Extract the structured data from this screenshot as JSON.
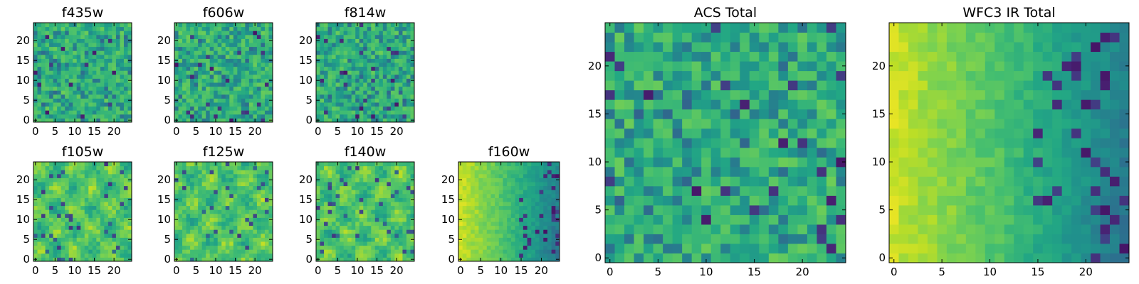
{
  "chart_data": [
    {
      "type": "heatmap",
      "title": "f435w",
      "image_size": [
        25,
        25
      ],
      "xlim": [
        0,
        24
      ],
      "ylim": [
        0,
        24
      ],
      "xticks": [
        "0",
        "5",
        "10",
        "15",
        "20"
      ],
      "yticks": [
        "0",
        "5",
        "10",
        "15",
        "20"
      ],
      "colormap": "viridis",
      "colorbar": false,
      "texture": "noisy",
      "values": []
    },
    {
      "type": "heatmap",
      "title": "f606w",
      "image_size": [
        25,
        25
      ],
      "xlim": [
        0,
        24
      ],
      "ylim": [
        0,
        24
      ],
      "xticks": [
        "0",
        "5",
        "10",
        "15",
        "20"
      ],
      "yticks": [
        "0",
        "5",
        "10",
        "15",
        "20"
      ],
      "colormap": "viridis",
      "colorbar": false,
      "texture": "noisy",
      "values": []
    },
    {
      "type": "heatmap",
      "title": "f814w",
      "image_size": [
        25,
        25
      ],
      "xlim": [
        0,
        24
      ],
      "ylim": [
        0,
        24
      ],
      "xticks": [
        "0",
        "5",
        "10",
        "15",
        "20"
      ],
      "yticks": [
        "0",
        "5",
        "10",
        "15",
        "20"
      ],
      "colormap": "viridis",
      "colorbar": false,
      "texture": "noisy",
      "values": []
    },
    {
      "type": "heatmap",
      "title": "f105w",
      "image_size": [
        25,
        25
      ],
      "xlim": [
        0,
        24
      ],
      "ylim": [
        0,
        24
      ],
      "xticks": [
        "0",
        "5",
        "10",
        "15",
        "20"
      ],
      "yticks": [
        "0",
        "5",
        "10",
        "15",
        "20"
      ],
      "colormap": "viridis",
      "colorbar": false,
      "texture": "smooth",
      "values": []
    },
    {
      "type": "heatmap",
      "title": "f125w",
      "image_size": [
        25,
        25
      ],
      "xlim": [
        0,
        24
      ],
      "ylim": [
        0,
        24
      ],
      "xticks": [
        "0",
        "5",
        "10",
        "15",
        "20"
      ],
      "yticks": [
        "0",
        "5",
        "10",
        "15",
        "20"
      ],
      "colormap": "viridis",
      "colorbar": false,
      "texture": "smooth",
      "values": []
    },
    {
      "type": "heatmap",
      "title": "f140w",
      "image_size": [
        25,
        25
      ],
      "xlim": [
        0,
        24
      ],
      "ylim": [
        0,
        24
      ],
      "xticks": [
        "0",
        "5",
        "10",
        "15",
        "20"
      ],
      "yticks": [
        "0",
        "5",
        "10",
        "15",
        "20"
      ],
      "colormap": "viridis",
      "colorbar": false,
      "texture": "smooth",
      "values": []
    },
    {
      "type": "heatmap",
      "title": "f160w",
      "image_size": [
        25,
        25
      ],
      "xlim": [
        0,
        24
      ],
      "ylim": [
        0,
        24
      ],
      "xticks": [
        "0",
        "5",
        "10",
        "15",
        "20"
      ],
      "yticks": [
        "0",
        "5",
        "10",
        "15",
        "20"
      ],
      "colormap": "viridis",
      "colorbar": false,
      "texture": "gradient",
      "values": []
    },
    {
      "type": "heatmap",
      "title": "ACS Total",
      "image_size": [
        25,
        25
      ],
      "xlim": [
        0,
        24
      ],
      "ylim": [
        0,
        24
      ],
      "xticks": [
        "0",
        "5",
        "10",
        "15",
        "20"
      ],
      "yticks": [
        "0",
        "5",
        "10",
        "15",
        "20"
      ],
      "colormap": "viridis",
      "colorbar": false,
      "texture": "noisy",
      "values": []
    },
    {
      "type": "heatmap",
      "title": "WFC3 IR Total",
      "image_size": [
        25,
        25
      ],
      "xlim": [
        0,
        24
      ],
      "ylim": [
        0,
        24
      ],
      "xticks": [
        "0",
        "5",
        "10",
        "15",
        "20"
      ],
      "yticks": [
        "0",
        "5",
        "10",
        "15",
        "20"
      ],
      "colormap": "viridis",
      "colorbar": false,
      "texture": "gradient",
      "values": []
    }
  ]
}
